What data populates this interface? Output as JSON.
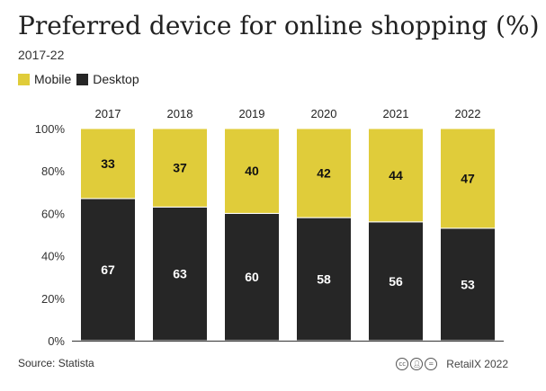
{
  "header": {
    "title": "Preferred device for online shopping (%)",
    "subtitle": "2017-22"
  },
  "legend": {
    "items": [
      {
        "label": "Mobile",
        "color": "#e0cc3a"
      },
      {
        "label": "Desktop",
        "color": "#262626"
      }
    ]
  },
  "footer": {
    "source": "Source: Statista",
    "credit": "RetailX 2022",
    "license_icons": [
      "cc-icon",
      "by-icon",
      "equals-icon"
    ]
  },
  "chart_data": {
    "type": "bar",
    "stacked": true,
    "categories": [
      "2017",
      "2018",
      "2019",
      "2020",
      "2021",
      "2022"
    ],
    "series": [
      {
        "name": "Desktop",
        "values": [
          67,
          63,
          60,
          58,
          56,
          53
        ],
        "color": "#262626",
        "label_color": "#ffffff"
      },
      {
        "name": "Mobile",
        "values": [
          33,
          37,
          40,
          42,
          44,
          47
        ],
        "color": "#e0cc3a",
        "label_color": "#111111"
      }
    ],
    "ylim": [
      0,
      100
    ],
    "yticks": [
      "0%",
      "20%",
      "40%",
      "60%",
      "80%",
      "100%"
    ],
    "category_labels_position": "top",
    "grid": false,
    "legend_position": "top-left"
  }
}
